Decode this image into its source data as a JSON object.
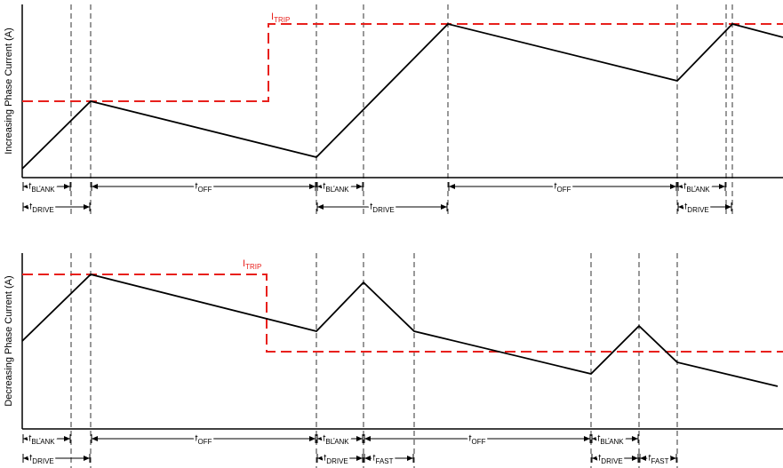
{
  "panels": [
    {
      "y_label": "Increasing Phase Current (A)",
      "trip_label": {
        "main": "I",
        "sub": "TRIP"
      },
      "intervals": [
        {
          "main": "t",
          "sub": "BLANK"
        },
        {
          "main": "t",
          "sub": "OFF"
        },
        {
          "main": "t",
          "sub": "BLANK"
        },
        {
          "main": "t",
          "sub": "OFF"
        },
        {
          "main": "t",
          "sub": "BLANK"
        },
        {
          "main": "t",
          "sub": "DRIVE"
        },
        {
          "main": "t",
          "sub": "DRIVE"
        },
        {
          "main": "t",
          "sub": "DRIVE"
        }
      ]
    },
    {
      "y_label": "Decreasing Phase Current (A)",
      "trip_label": {
        "main": "I",
        "sub": "TRIP"
      },
      "intervals": [
        {
          "main": "t",
          "sub": "BLANK"
        },
        {
          "main": "t",
          "sub": "OFF"
        },
        {
          "main": "t",
          "sub": "BLANK"
        },
        {
          "main": "t",
          "sub": "OFF"
        },
        {
          "main": "t",
          "sub": "BLANK"
        },
        {
          "main": "t",
          "sub": "DRIVE"
        },
        {
          "main": "t",
          "sub": "DRIVE"
        },
        {
          "main": "t",
          "sub": "FAST"
        },
        {
          "main": "t",
          "sub": "DRIVE"
        },
        {
          "main": "t",
          "sub": "FAST"
        }
      ]
    }
  ]
}
